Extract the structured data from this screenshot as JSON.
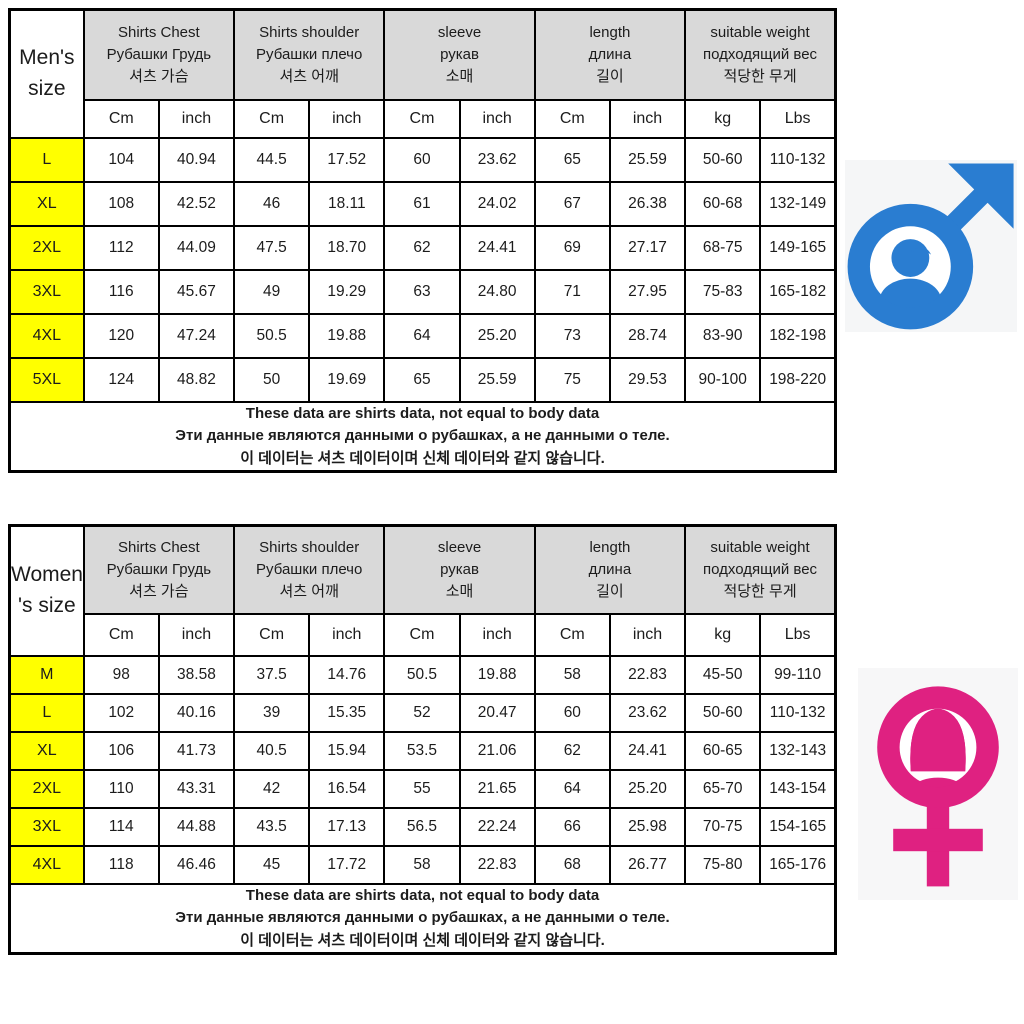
{
  "colors": {
    "header_bg": "#d9d9d9",
    "size_cell_bg": "#ffff00",
    "border": "#000000",
    "male_blue": "#2a7dd1",
    "female_pink": "#df2181"
  },
  "columns": [
    {
      "en": "Shirts Chest",
      "ru": "Рубашки Грудь",
      "ko": "셔츠 가슴"
    },
    {
      "en": "Shirts shoulder",
      "ru": "Рубашки плечо",
      "ko": "셔츠 어깨"
    },
    {
      "en": "sleeve",
      "ru": "рукав",
      "ko": "소매"
    },
    {
      "en": "length",
      "ru": "длина",
      "ko": "길이"
    },
    {
      "en": "suitable weight",
      "ru": "подходящий вес",
      "ko": "적당한 무게"
    }
  ],
  "units_row": [
    "Cm",
    "inch",
    "Cm",
    "inch",
    "Cm",
    "inch",
    "Cm",
    "inch",
    "kg",
    "Lbs"
  ],
  "note": {
    "en": "These data are shirts data, not equal to body data",
    "ru": "Эти данные являются данными о рубашках, а не данными о теле.",
    "ko": "이 데이터는 셔츠 데이터이며 신체 데이터와 같지 않습니다."
  },
  "men": {
    "title_line1": "Men's",
    "title_line2": "size",
    "rows": [
      {
        "size": "L",
        "values": [
          "104",
          "40.94",
          "44.5",
          "17.52",
          "60",
          "23.62",
          "65",
          "25.59",
          "50-60",
          "110-132"
        ]
      },
      {
        "size": "XL",
        "values": [
          "108",
          "42.52",
          "46",
          "18.11",
          "61",
          "24.02",
          "67",
          "26.38",
          "60-68",
          "132-149"
        ]
      },
      {
        "size": "2XL",
        "values": [
          "112",
          "44.09",
          "47.5",
          "18.70",
          "62",
          "24.41",
          "69",
          "27.17",
          "68-75",
          "149-165"
        ]
      },
      {
        "size": "3XL",
        "values": [
          "116",
          "45.67",
          "49",
          "19.29",
          "63",
          "24.80",
          "71",
          "27.95",
          "75-83",
          "165-182"
        ]
      },
      {
        "size": "4XL",
        "values": [
          "120",
          "47.24",
          "50.5",
          "19.88",
          "64",
          "25.20",
          "73",
          "28.74",
          "83-90",
          "182-198"
        ]
      },
      {
        "size": "5XL",
        "values": [
          "124",
          "48.82",
          "50",
          "19.69",
          "65",
          "25.59",
          "75",
          "29.53",
          "90-100",
          "198-220"
        ]
      }
    ]
  },
  "women": {
    "title_line1": "Women",
    "title_line2": "'s size",
    "rows": [
      {
        "size": "M",
        "values": [
          "98",
          "38.58",
          "37.5",
          "14.76",
          "50.5",
          "19.88",
          "58",
          "22.83",
          "45-50",
          "99-110"
        ]
      },
      {
        "size": "L",
        "values": [
          "102",
          "40.16",
          "39",
          "15.35",
          "52",
          "20.47",
          "60",
          "23.62",
          "50-60",
          "110-132"
        ]
      },
      {
        "size": "XL",
        "values": [
          "106",
          "41.73",
          "40.5",
          "15.94",
          "53.5",
          "21.06",
          "62",
          "24.41",
          "60-65",
          "132-143"
        ]
      },
      {
        "size": "2XL",
        "values": [
          "110",
          "43.31",
          "42",
          "16.54",
          "55",
          "21.65",
          "64",
          "25.20",
          "65-70",
          "143-154"
        ]
      },
      {
        "size": "3XL",
        "values": [
          "114",
          "44.88",
          "43.5",
          "17.13",
          "56.5",
          "22.24",
          "66",
          "25.98",
          "70-75",
          "154-165"
        ]
      },
      {
        "size": "4XL",
        "values": [
          "118",
          "46.46",
          "45",
          "17.72",
          "58",
          "22.83",
          "68",
          "26.77",
          "75-80",
          "165-176"
        ]
      }
    ]
  },
  "icons": {
    "male": "male-symbol",
    "female": "female-symbol"
  }
}
